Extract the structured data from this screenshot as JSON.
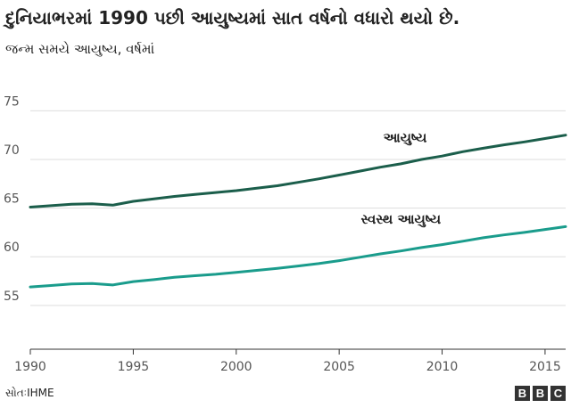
{
  "title": "દુનિયાભરમાં 1990 પછી આયુષ્યમાં સાત વર્ષનો વધારો થયો છે.",
  "subtitle": "જન્મ સમયે આયુષ્ય, વર્ષમાં",
  "source": "સોતઃIHME",
  "logo": [
    "B",
    "B",
    "C"
  ],
  "chart_data": {
    "type": "line",
    "x": [
      1990,
      1991,
      1992,
      1993,
      1994,
      1995,
      1996,
      1997,
      1998,
      1999,
      2000,
      2001,
      2002,
      2003,
      2004,
      2005,
      2006,
      2007,
      2008,
      2009,
      2010,
      2011,
      2012,
      2013,
      2014,
      2015,
      2016
    ],
    "series": [
      {
        "name": "આયુષ્ય",
        "color": "#1b5e4b",
        "values": [
          65.1,
          65.25,
          65.4,
          65.45,
          65.3,
          65.7,
          65.95,
          66.2,
          66.4,
          66.6,
          66.8,
          67.05,
          67.3,
          67.65,
          68.0,
          68.4,
          68.8,
          69.2,
          69.55,
          70.0,
          70.35,
          70.8,
          71.15,
          71.5,
          71.8,
          72.15,
          72.5
        ]
      },
      {
        "name": "સ્વસ્થ આયુષ્ય",
        "color": "#1a9c8c",
        "values": [
          56.9,
          57.05,
          57.2,
          57.25,
          57.1,
          57.45,
          57.65,
          57.9,
          58.05,
          58.2,
          58.4,
          58.6,
          58.8,
          59.05,
          59.3,
          59.6,
          59.95,
          60.3,
          60.6,
          60.95,
          61.25,
          61.6,
          61.95,
          62.25,
          62.5,
          62.8,
          63.1
        ]
      }
    ],
    "y_ticks": [
      75,
      70,
      65,
      60,
      55
    ],
    "x_ticks": [
      1990,
      1995,
      2000,
      2005,
      2010,
      2015
    ],
    "ylim": [
      50.5,
      76.5
    ],
    "xlim": [
      1990,
      2016
    ],
    "grid": true,
    "legend": "inline-labels"
  }
}
